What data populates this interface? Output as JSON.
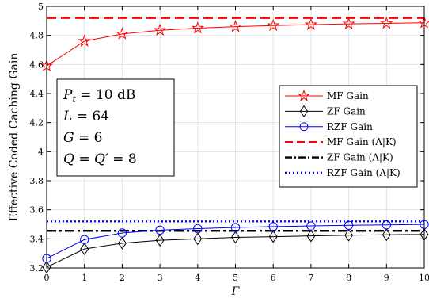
{
  "chart_data": {
    "type": "line",
    "xlabel": "Γ",
    "ylabel": "Effective Coded Caching Gain",
    "x": [
      0,
      1,
      2,
      3,
      4,
      5,
      6,
      7,
      8,
      9,
      10
    ],
    "xlim": [
      0,
      10
    ],
    "ylim": [
      3.2,
      5
    ],
    "xticks": [
      "0",
      "1",
      "2",
      "3",
      "4",
      "5",
      "6",
      "7",
      "8",
      "9",
      "10"
    ],
    "yticks": [
      "3.2",
      "3.4",
      "3.6",
      "3.8",
      "4",
      "4.2",
      "4.4",
      "4.6",
      "4.8",
      "5"
    ],
    "grid": true,
    "legend_position": "center-right",
    "series": [
      {
        "name": "MF Gain",
        "color": "#ff0000",
        "dash": "solid",
        "marker": "star",
        "values": [
          4.59,
          4.76,
          4.81,
          4.835,
          4.85,
          4.86,
          4.868,
          4.874,
          4.879,
          4.883,
          4.887
        ]
      },
      {
        "name": "ZF Gain",
        "color": "#000000",
        "dash": "solid",
        "marker": "diamond",
        "values": [
          3.205,
          3.33,
          3.37,
          3.39,
          3.4,
          3.41,
          3.415,
          3.42,
          3.425,
          3.428,
          3.43
        ]
      },
      {
        "name": "RZF Gain",
        "color": "#0000ff",
        "dash": "solid",
        "marker": "circle",
        "values": [
          3.265,
          3.395,
          3.44,
          3.46,
          3.47,
          3.478,
          3.484,
          3.489,
          3.493,
          3.496,
          3.499
        ]
      },
      {
        "name": "MF Gain (Λ|K)",
        "color": "#ff0000",
        "dash": "dashed",
        "marker": "none",
        "constant": 4.92
      },
      {
        "name": "ZF Gain (Λ|K)",
        "color": "#000000",
        "dash": "dashdot",
        "marker": "none",
        "constant": 3.455
      },
      {
        "name": "RZF Gain (Λ|K)",
        "color": "#0000ff",
        "dash": "dotted",
        "marker": "none",
        "constant": 3.52
      }
    ],
    "annotation_box": {
      "lines": [
        "P_t = 10 dB",
        "L = 64",
        "G = 6",
        "Q = Q′ = 8"
      ]
    }
  }
}
